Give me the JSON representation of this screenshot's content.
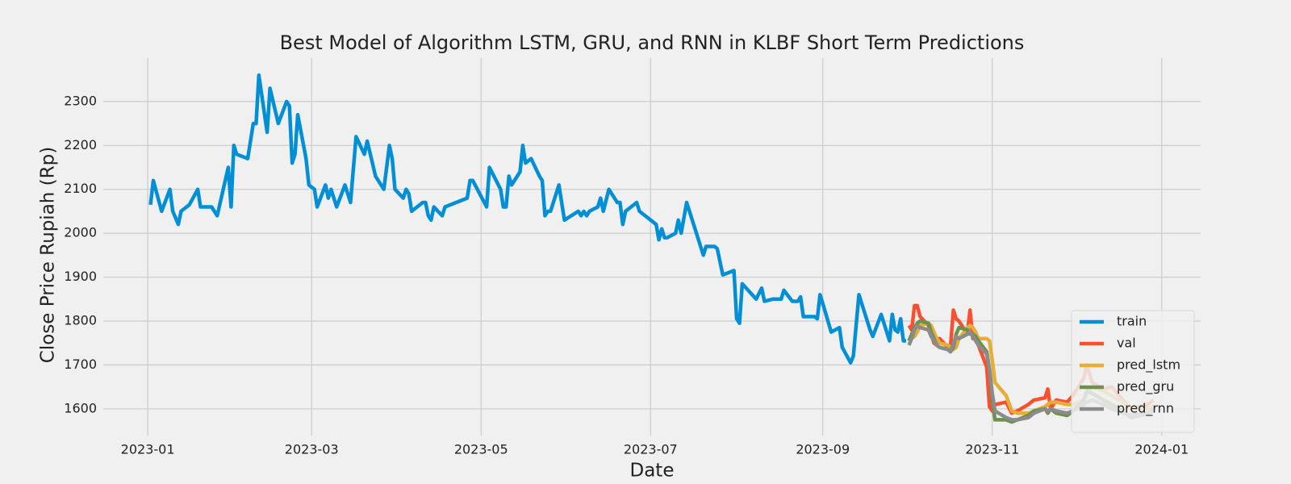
{
  "chart_data": {
    "type": "line",
    "title": "Best Model of Algorithm LSTM, GRU, and RNN in KLBF Short Term Predictions",
    "xlabel": "Date",
    "ylabel": "Close Price Rupiah (Rp)",
    "xlim": [
      "2022-12-16",
      "2024-01-15"
    ],
    "ylim": [
      1539,
      2399
    ],
    "xticks": [
      {
        "value": "2023-01-01",
        "label": "2023-01"
      },
      {
        "value": "2023-03-01",
        "label": "2023-03"
      },
      {
        "value": "2023-05-01",
        "label": "2023-05"
      },
      {
        "value": "2023-07-01",
        "label": "2023-07"
      },
      {
        "value": "2023-09-01",
        "label": "2023-09"
      },
      {
        "value": "2023-11-01",
        "label": "2023-11"
      },
      {
        "value": "2024-01-01",
        "label": "2024-01"
      }
    ],
    "yticks": [
      1600,
      1700,
      1800,
      1900,
      2000,
      2100,
      2200,
      2300
    ],
    "grid": true,
    "legend": "lower right",
    "series": [
      {
        "name": "train",
        "color": "#008fd5",
        "x": [
          "2023-01-02",
          "2023-01-03",
          "2023-01-06",
          "2023-01-09",
          "2023-01-10",
          "2023-01-12",
          "2023-01-13",
          "2023-01-16",
          "2023-01-19",
          "2023-01-20",
          "2023-01-24",
          "2023-01-26",
          "2023-01-30",
          "2023-01-31",
          "2023-02-01",
          "2023-02-02",
          "2023-02-06",
          "2023-02-08",
          "2023-02-09",
          "2023-02-10",
          "2023-02-13",
          "2023-02-14",
          "2023-02-17",
          "2023-02-20",
          "2023-02-21",
          "2023-02-22",
          "2023-02-23",
          "2023-02-24",
          "2023-02-27",
          "2023-02-28",
          "2023-03-02",
          "2023-03-03",
          "2023-03-06",
          "2023-03-07",
          "2023-03-08",
          "2023-03-10",
          "2023-03-13",
          "2023-03-15",
          "2023-03-17",
          "2023-03-20",
          "2023-03-21",
          "2023-03-24",
          "2023-03-27",
          "2023-03-28",
          "2023-03-29",
          "2023-03-30",
          "2023-03-31",
          "2023-04-03",
          "2023-04-04",
          "2023-04-05",
          "2023-04-06",
          "2023-04-10",
          "2023-04-11",
          "2023-04-12",
          "2023-04-13",
          "2023-04-14",
          "2023-04-17",
          "2023-04-18",
          "2023-04-26",
          "2023-04-27",
          "2023-04-28",
          "2023-05-03",
          "2023-05-04",
          "2023-05-08",
          "2023-05-09",
          "2023-05-10",
          "2023-05-11",
          "2023-05-12",
          "2023-05-15",
          "2023-05-16",
          "2023-05-17",
          "2023-05-19",
          "2023-05-22",
          "2023-05-23",
          "2023-05-24",
          "2023-05-25",
          "2023-05-26",
          "2023-05-29",
          "2023-05-31",
          "2023-06-05",
          "2023-06-06",
          "2023-06-07",
          "2023-06-08",
          "2023-06-09",
          "2023-06-12",
          "2023-06-13",
          "2023-06-14",
          "2023-06-16",
          "2023-06-19",
          "2023-06-20",
          "2023-06-21",
          "2023-06-22",
          "2023-06-26",
          "2023-06-27",
          "2023-07-03",
          "2023-07-04",
          "2023-07-05",
          "2023-07-06",
          "2023-07-07",
          "2023-07-10",
          "2023-07-11",
          "2023-07-12",
          "2023-07-14",
          "2023-07-17",
          "2023-07-20",
          "2023-07-21",
          "2023-07-24",
          "2023-07-25",
          "2023-07-27",
          "2023-07-31",
          "2023-08-01",
          "2023-08-02",
          "2023-08-03",
          "2023-08-08",
          "2023-08-10",
          "2023-08-11",
          "2023-08-14",
          "2023-08-17",
          "2023-08-18",
          "2023-08-21",
          "2023-08-23",
          "2023-08-24",
          "2023-08-25",
          "2023-08-29",
          "2023-08-30",
          "2023-08-31",
          "2023-09-01",
          "2023-09-04",
          "2023-09-07",
          "2023-09-08",
          "2023-09-11",
          "2023-09-12",
          "2023-09-14",
          "2023-09-18",
          "2023-09-19",
          "2023-09-22",
          "2023-09-25",
          "2023-09-26",
          "2023-09-27",
          "2023-09-28",
          "2023-09-29",
          "2023-09-30",
          "2023-10-01"
        ],
        "values": [
          2065,
          2120,
          2050,
          2100,
          2050,
          2020,
          2050,
          2065,
          2100,
          2060,
          2060,
          2040,
          2150,
          2060,
          2200,
          2180,
          2170,
          2250,
          2250,
          2360,
          2230,
          2330,
          2250,
          2300,
          2290,
          2160,
          2180,
          2270,
          2170,
          2110,
          2100,
          2060,
          2110,
          2080,
          2100,
          2060,
          2110,
          2070,
          2220,
          2180,
          2210,
          2130,
          2100,
          2150,
          2200,
          2170,
          2100,
          2080,
          2100,
          2090,
          2050,
          2070,
          2070,
          2040,
          2030,
          2060,
          2040,
          2060,
          2080,
          2120,
          2120,
          2060,
          2150,
          2100,
          2060,
          2060,
          2130,
          2110,
          2140,
          2200,
          2160,
          2170,
          2130,
          2120,
          2040,
          2050,
          2050,
          2110,
          2030,
          2050,
          2040,
          2050,
          2040,
          2050,
          2060,
          2080,
          2050,
          2100,
          2070,
          2070,
          2020,
          2050,
          2070,
          2050,
          2020,
          1985,
          2010,
          1990,
          1990,
          2000,
          2030,
          2000,
          2070,
          2010,
          1950,
          1970,
          1970,
          1965,
          1905,
          1915,
          1805,
          1795,
          1885,
          1850,
          1875,
          1845,
          1850,
          1850,
          1870,
          1845,
          1845,
          1855,
          1810,
          1810,
          1805,
          1860,
          1840,
          1775,
          1785,
          1740,
          1705,
          1720,
          1860,
          1780,
          1765,
          1815,
          1755,
          1815,
          1780,
          1775,
          1805,
          1755,
          1755
        ]
      },
      {
        "name": "val",
        "color": "#fc4f30",
        "x": [
          "2023-10-02",
          "2023-10-03",
          "2023-10-04",
          "2023-10-05",
          "2023-10-06",
          "2023-10-09",
          "2023-10-10",
          "2023-10-11",
          "2023-10-12",
          "2023-10-13",
          "2023-10-16",
          "2023-10-17",
          "2023-10-18",
          "2023-10-19",
          "2023-10-20",
          "2023-10-23",
          "2023-10-24",
          "2023-10-25",
          "2023-10-26",
          "2023-10-27",
          "2023-10-30",
          "2023-10-31",
          "2023-11-01",
          "2023-11-02",
          "2023-11-06",
          "2023-11-08",
          "2023-11-10",
          "2023-11-14",
          "2023-11-16",
          "2023-11-20",
          "2023-11-21",
          "2023-11-22",
          "2023-11-24",
          "2023-11-28",
          "2023-11-30",
          "2023-12-04",
          "2023-12-05",
          "2023-12-07",
          "2023-12-11",
          "2023-12-14",
          "2023-12-18",
          "2023-12-21",
          "2023-12-27",
          "2023-12-29"
        ],
        "values": [
          1790,
          1780,
          1835,
          1835,
          1810,
          1790,
          1770,
          1750,
          1745,
          1760,
          1740,
          1745,
          1825,
          1805,
          1800,
          1770,
          1825,
          1760,
          1760,
          1745,
          1695,
          1605,
          1595,
          1610,
          1615,
          1590,
          1595,
          1610,
          1620,
          1625,
          1645,
          1600,
          1620,
          1615,
          1630,
          1670,
          1700,
          1660,
          1645,
          1650,
          1620,
          1600,
          1610,
          1620
        ]
      },
      {
        "name": "pred_lstm",
        "color": "#e5ae38",
        "x": [
          "2023-10-02",
          "2023-10-03",
          "2023-10-04",
          "2023-10-05",
          "2023-10-06",
          "2023-10-09",
          "2023-10-10",
          "2023-10-11",
          "2023-10-12",
          "2023-10-13",
          "2023-10-16",
          "2023-10-17",
          "2023-10-18",
          "2023-10-19",
          "2023-10-20",
          "2023-10-23",
          "2023-10-24",
          "2023-10-25",
          "2023-10-26",
          "2023-10-27",
          "2023-10-30",
          "2023-10-31",
          "2023-11-01",
          "2023-11-02",
          "2023-11-06",
          "2023-11-08",
          "2023-11-10",
          "2023-11-14",
          "2023-11-16",
          "2023-11-20",
          "2023-11-21",
          "2023-11-22",
          "2023-11-24",
          "2023-11-28",
          "2023-11-30",
          "2023-12-04",
          "2023-12-05",
          "2023-12-07",
          "2023-12-11",
          "2023-12-14",
          "2023-12-18",
          "2023-12-21",
          "2023-12-27",
          "2023-12-29"
        ],
        "values": [
          1755,
          1760,
          1765,
          1775,
          1790,
          1795,
          1790,
          1775,
          1760,
          1750,
          1745,
          1740,
          1735,
          1740,
          1760,
          1785,
          1790,
          1785,
          1775,
          1760,
          1760,
          1755,
          1710,
          1660,
          1630,
          1595,
          1590,
          1590,
          1595,
          1605,
          1610,
          1615,
          1615,
          1610,
          1610,
          1620,
          1635,
          1650,
          1640,
          1630,
          1615,
          1600,
          1600,
          1605
        ]
      },
      {
        "name": "pred_gru",
        "color": "#6d904f",
        "x": [
          "2023-10-02",
          "2023-10-03",
          "2023-10-04",
          "2023-10-05",
          "2023-10-06",
          "2023-10-09",
          "2023-10-10",
          "2023-10-11",
          "2023-10-12",
          "2023-10-13",
          "2023-10-16",
          "2023-10-17",
          "2023-10-18",
          "2023-10-19",
          "2023-10-20",
          "2023-10-23",
          "2023-10-24",
          "2023-10-25",
          "2023-10-26",
          "2023-10-27",
          "2023-10-30",
          "2023-10-31",
          "2023-11-01",
          "2023-11-02",
          "2023-11-06",
          "2023-11-08",
          "2023-11-10",
          "2023-11-14",
          "2023-11-16",
          "2023-11-20",
          "2023-11-21",
          "2023-11-22",
          "2023-11-24",
          "2023-11-28",
          "2023-11-30",
          "2023-12-04",
          "2023-12-05",
          "2023-12-07",
          "2023-12-11",
          "2023-12-14",
          "2023-12-18",
          "2023-12-21",
          "2023-12-27",
          "2023-12-29"
        ],
        "values": [
          1755,
          1770,
          1785,
          1795,
          1800,
          1795,
          1775,
          1760,
          1745,
          1740,
          1735,
          1730,
          1740,
          1770,
          1785,
          1780,
          1770,
          1770,
          1765,
          1755,
          1730,
          1690,
          1620,
          1575,
          1575,
          1570,
          1575,
          1585,
          1595,
          1600,
          1590,
          1600,
          1590,
          1585,
          1595,
          1620,
          1640,
          1635,
          1620,
          1610,
          1595,
          1580,
          1590,
          1600
        ]
      },
      {
        "name": "pred_rnn",
        "color": "#8b8b8b",
        "x": [
          "2023-10-02",
          "2023-10-03",
          "2023-10-04",
          "2023-10-05",
          "2023-10-06",
          "2023-10-09",
          "2023-10-10",
          "2023-10-11",
          "2023-10-12",
          "2023-10-13",
          "2023-10-16",
          "2023-10-17",
          "2023-10-18",
          "2023-10-19",
          "2023-10-20",
          "2023-10-23",
          "2023-10-24",
          "2023-10-25",
          "2023-10-26",
          "2023-10-27",
          "2023-10-30",
          "2023-10-31",
          "2023-11-01",
          "2023-11-02",
          "2023-11-06",
          "2023-11-08",
          "2023-11-10",
          "2023-11-14",
          "2023-11-16",
          "2023-11-20",
          "2023-11-21",
          "2023-11-22",
          "2023-11-24",
          "2023-11-28",
          "2023-11-30",
          "2023-12-04",
          "2023-12-05",
          "2023-12-07",
          "2023-12-11",
          "2023-12-14",
          "2023-12-18",
          "2023-12-21",
          "2023-12-27",
          "2023-12-29"
        ],
        "values": [
          1745,
          1760,
          1780,
          1790,
          1785,
          1780,
          1765,
          1755,
          1745,
          1740,
          1735,
          1730,
          1750,
          1765,
          1760,
          1770,
          1775,
          1765,
          1755,
          1745,
          1725,
          1690,
          1635,
          1595,
          1580,
          1575,
          1575,
          1580,
          1590,
          1600,
          1595,
          1600,
          1595,
          1590,
          1595,
          1610,
          1615,
          1620,
          1610,
          1600,
          1590,
          1585,
          1590,
          1595
        ]
      }
    ]
  }
}
